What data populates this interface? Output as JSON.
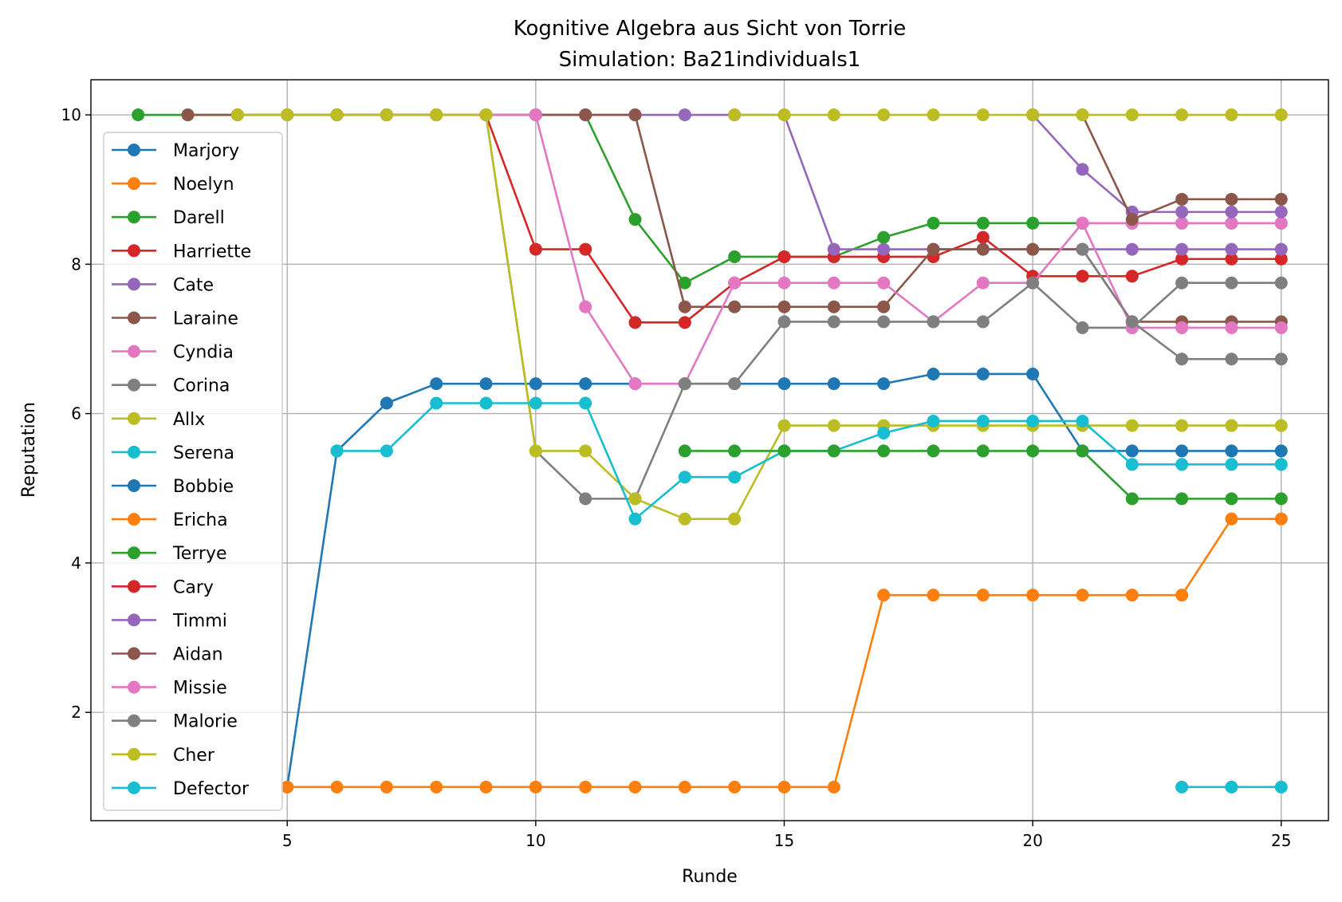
{
  "chart_data": {
    "type": "line",
    "title": "Kognitive Algebra aus Sicht von Torrie",
    "subtitle": "Simulation: Ba21individuals1",
    "xlabel": "Runde",
    "ylabel": "Reputation",
    "xlim": [
      1.05,
      25.95
    ],
    "ylim": [
      0.55,
      10.47
    ],
    "xticks": [
      5,
      10,
      15,
      20,
      25
    ],
    "yticks": [
      2,
      4,
      6,
      8,
      10
    ],
    "grid": true,
    "legend_position": "upper-left",
    "series": [
      {
        "name": "Marjory",
        "color": "#1f77b4",
        "x": [
          5,
          6,
          7,
          8,
          9,
          10,
          11,
          12,
          13,
          14,
          15,
          16,
          17,
          18,
          19,
          20,
          21,
          22,
          23,
          24,
          25
        ],
        "y": [
          1,
          5.5,
          6.14,
          6.4,
          6.4,
          6.4,
          6.4,
          6.4,
          6.4,
          6.4,
          6.4,
          6.4,
          6.4,
          6.53,
          6.53,
          6.53,
          5.5,
          5.5,
          5.5,
          5.5,
          5.5
        ]
      },
      {
        "name": "Noelyn",
        "color": "#ff7f0e",
        "x": [
          5,
          6,
          7,
          8,
          9,
          10,
          11,
          12,
          13,
          14,
          15,
          16,
          17,
          18,
          19,
          20,
          21,
          22,
          23,
          24,
          25
        ],
        "y": [
          1,
          1,
          1,
          1,
          1,
          1,
          1,
          1,
          1,
          1,
          1,
          1,
          3.57,
          3.57,
          3.57,
          3.57,
          3.57,
          3.57,
          3.57,
          4.59,
          4.59
        ]
      },
      {
        "name": "Darell",
        "color": "#2ca02c",
        "x": [
          2,
          3,
          4,
          5,
          6,
          7,
          8,
          9,
          10,
          11,
          12,
          13,
          14,
          15,
          16,
          17,
          18,
          19,
          20,
          21,
          22,
          23,
          24,
          25
        ],
        "y": [
          10,
          10,
          10,
          10,
          10,
          10,
          10,
          10,
          10,
          10,
          8.6,
          7.75,
          8.1,
          8.1,
          8.1,
          8.36,
          8.55,
          8.55,
          8.55,
          8.55,
          8.55,
          8.55,
          8.55,
          8.55
        ]
      },
      {
        "name": "Harriette",
        "color": "#d62728",
        "x": [
          9,
          10,
          11,
          12,
          13,
          14,
          15,
          16,
          17,
          18,
          19,
          20,
          21,
          22,
          23,
          24,
          25
        ],
        "y": [
          10,
          8.2,
          8.2,
          7.22,
          7.22,
          7.75,
          8.1,
          8.1,
          8.1,
          8.1,
          8.36,
          7.84,
          7.84,
          7.84,
          8.07,
          8.07,
          8.07
        ]
      },
      {
        "name": "Cate",
        "color": "#9467bd",
        "x": [
          6,
          7,
          8,
          9,
          10,
          11,
          12,
          13,
          14,
          15,
          16,
          17,
          18,
          19,
          20,
          21,
          22,
          23,
          24,
          25
        ],
        "y": [
          10,
          10,
          10,
          10,
          10,
          10,
          10,
          10,
          10,
          10,
          8.2,
          8.2,
          8.2,
          8.2,
          8.2,
          8.2,
          8.2,
          8.2,
          8.2,
          8.2
        ]
      },
      {
        "name": "Laraine",
        "color": "#8c564b",
        "x": [
          3,
          4,
          5,
          6,
          7,
          8,
          9,
          10,
          11,
          12,
          13,
          14,
          15,
          16,
          17,
          18,
          19,
          20,
          21,
          22,
          23,
          24,
          25
        ],
        "y": [
          10,
          10,
          10,
          10,
          10,
          10,
          10,
          10,
          10,
          10,
          7.43,
          7.43,
          7.43,
          7.43,
          7.43,
          8.2,
          8.2,
          8.2,
          8.2,
          7.23,
          7.23,
          7.23,
          7.23
        ]
      },
      {
        "name": "Cyndia",
        "color": "#e377c2",
        "x": [
          8,
          9,
          10,
          11,
          12,
          13,
          14,
          15,
          16,
          17,
          18,
          19,
          20,
          21,
          22,
          23,
          24,
          25
        ],
        "y": [
          10,
          10,
          10,
          7.43,
          6.4,
          6.4,
          7.75,
          7.75,
          7.75,
          7.75,
          7.23,
          7.75,
          7.75,
          8.55,
          8.55,
          8.55,
          8.55,
          8.55
        ]
      },
      {
        "name": "Corina",
        "color": "#7f7f7f",
        "x": [
          9,
          10,
          11,
          12,
          13,
          14,
          15,
          16,
          17,
          18,
          19,
          20,
          21,
          22,
          23,
          24,
          25
        ],
        "y": [
          10,
          5.5,
          4.86,
          4.86,
          6.4,
          6.4,
          7.23,
          7.23,
          7.23,
          7.23,
          7.23,
          7.75,
          7.15,
          7.15,
          7.75,
          7.75,
          7.75
        ]
      },
      {
        "name": "Allx",
        "color": "#bcbd22",
        "x": [
          4,
          5,
          6,
          7,
          8,
          9,
          10,
          11,
          12,
          13,
          14,
          15,
          16,
          17,
          18,
          19,
          20,
          21,
          22,
          23,
          24,
          25
        ],
        "y": [
          10,
          10,
          10,
          10,
          10,
          10,
          5.5,
          5.5,
          4.86,
          4.59,
          4.59,
          5.84,
          5.84,
          5.84,
          5.84,
          5.84,
          5.84,
          5.84,
          5.84,
          5.84,
          5.84,
          5.84
        ]
      },
      {
        "name": "Serena",
        "color": "#17becf",
        "x": [
          6,
          7,
          8,
          9,
          10,
          11,
          12,
          13,
          14,
          15,
          16,
          17,
          18,
          19,
          20,
          21,
          22,
          23,
          24,
          25
        ],
        "y": [
          5.5,
          5.5,
          6.14,
          6.14,
          6.14,
          6.14,
          4.59,
          5.15,
          5.15,
          5.5,
          5.5,
          5.74,
          5.9,
          5.9,
          5.9,
          5.9,
          5.32,
          5.32,
          5.32,
          5.32
        ]
      },
      {
        "name": "Bobbie",
        "color": "#1f77b4",
        "x": [],
        "y": []
      },
      {
        "name": "Ericha",
        "color": "#ff7f0e",
        "x": [],
        "y": []
      },
      {
        "name": "Terrye",
        "color": "#2ca02c",
        "x": [
          13,
          14,
          15,
          16,
          17,
          18,
          19,
          20,
          21,
          22,
          23,
          24,
          25
        ],
        "y": [
          5.5,
          5.5,
          5.5,
          5.5,
          5.5,
          5.5,
          5.5,
          5.5,
          5.5,
          4.86,
          4.86,
          4.86,
          4.86
        ]
      },
      {
        "name": "Cary",
        "color": "#d62728",
        "x": [],
        "y": []
      },
      {
        "name": "Timmi",
        "color": "#9467bd",
        "x": [
          20,
          21,
          22,
          23,
          24,
          25
        ],
        "y": [
          10,
          9.27,
          8.7,
          8.7,
          8.7,
          8.7
        ]
      },
      {
        "name": "Aidan",
        "color": "#8c564b",
        "x": [
          20,
          21,
          22,
          23,
          24,
          25
        ],
        "y": [
          10,
          10,
          8.6,
          8.87,
          8.87,
          8.87
        ]
      },
      {
        "name": "Missie",
        "color": "#e377c2",
        "x": [
          21,
          22,
          23,
          24,
          25
        ],
        "y": [
          8.55,
          7.15,
          7.15,
          7.15,
          7.15
        ]
      },
      {
        "name": "Malorie",
        "color": "#7f7f7f",
        "x": [
          21,
          22,
          23,
          24,
          25
        ],
        "y": [
          8.2,
          7.23,
          6.73,
          6.73,
          6.73
        ]
      },
      {
        "name": "Cher",
        "color": "#bcbd22",
        "x": [
          14,
          15,
          16,
          17,
          18,
          19,
          20,
          21,
          22,
          23,
          24,
          25
        ],
        "y": [
          10,
          10,
          10,
          10,
          10,
          10,
          10,
          10,
          10,
          10,
          10,
          10
        ]
      },
      {
        "name": "Defector",
        "color": "#17becf",
        "x": [
          23,
          24,
          25
        ],
        "y": [
          1,
          1,
          1
        ]
      }
    ]
  }
}
